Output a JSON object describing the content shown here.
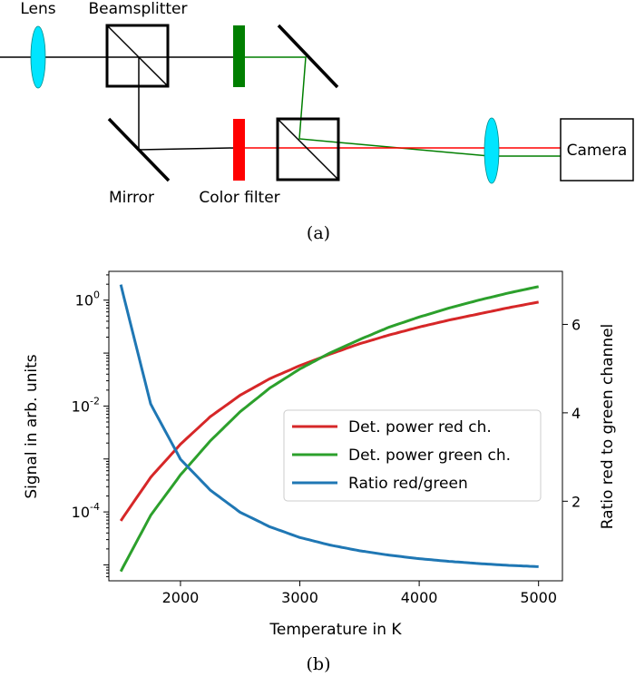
{
  "diagram": {
    "labels": {
      "lens": "Lens",
      "beamsplitter": "Beamsplitter",
      "mirror": "Mirror",
      "color_filter": "Color filter",
      "camera": "Camera"
    },
    "caption": "(a)",
    "colors": {
      "lens": "#00e5ff",
      "green_filter": "#007f00",
      "red_filter": "#ff0000",
      "red_beam": "#ff0000",
      "green_beam": "#007f00",
      "beam": "#000000"
    }
  },
  "chart_caption": "(b)",
  "chart_data": {
    "type": "line",
    "xlabel": "Temperature in K",
    "ylabel_left": "Signal in arb. units",
    "ylabel_right": "Ratio red to green channel",
    "xlim": [
      1400,
      5200
    ],
    "x_ticks": [
      "2000",
      "3000",
      "4000",
      "5000"
    ],
    "ylim_left": [
      5e-06,
      3.5
    ],
    "y_scale_left": "log",
    "y_ticks_left": [
      {
        "base": "10",
        "exp": "0"
      },
      {
        "base": "10",
        "exp": "-2"
      },
      {
        "base": "10",
        "exp": "-4"
      }
    ],
    "ylim_right": [
      0.2,
      7.2
    ],
    "y_ticks_right": [
      "2",
      "4",
      "6"
    ],
    "legend_position": "center-right",
    "x": [
      1500,
      1750,
      2000,
      2250,
      2500,
      2750,
      3000,
      3250,
      3500,
      3750,
      4000,
      4250,
      4500,
      4750,
      5000
    ],
    "series": [
      {
        "name": "Det. power red ch.",
        "axis": "left",
        "color": "#d62728",
        "values": [
          6.8e-05,
          0.00045,
          0.0019,
          0.0063,
          0.016,
          0.033,
          0.058,
          0.095,
          0.15,
          0.22,
          0.31,
          0.42,
          0.55,
          0.72,
          0.92
        ]
      },
      {
        "name": "Det. power green ch.",
        "axis": "left",
        "color": "#2ca02c",
        "values": [
          7.5e-06,
          8.6e-05,
          0.0005,
          0.0022,
          0.0078,
          0.022,
          0.05,
          0.1,
          0.18,
          0.31,
          0.48,
          0.71,
          1.0,
          1.37,
          1.8
        ]
      },
      {
        "name": "Ratio red/green",
        "axis": "right",
        "color": "#1f77b4",
        "values": [
          6.9,
          4.2,
          2.95,
          2.25,
          1.75,
          1.42,
          1.18,
          1.01,
          0.88,
          0.78,
          0.7,
          0.64,
          0.59,
          0.55,
          0.52
        ]
      }
    ]
  }
}
